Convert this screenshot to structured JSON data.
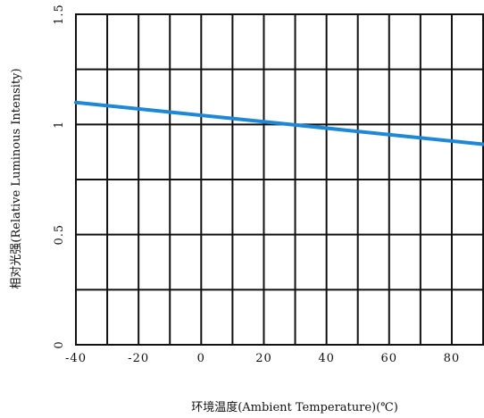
{
  "chart_data": {
    "type": "line",
    "title": "",
    "xlabel": "环境温度(Ambient Temperature)(℃)",
    "ylabel": "相对光强(Relative Luminous Intensity)",
    "xlim": [
      -40,
      90
    ],
    "ylim": [
      0,
      1.5
    ],
    "xticks": [
      -40,
      -20,
      0,
      20,
      40,
      60,
      80
    ],
    "xtick_labels": [
      "-40",
      "-20",
      "0",
      "20",
      "40",
      "60",
      "80"
    ],
    "yticks": [
      0,
      0.5,
      1,
      1.5
    ],
    "ytick_labels": [
      "0",
      "0.5",
      "1",
      "1.5"
    ],
    "x_gridlines": [
      -40,
      -30,
      -20,
      -10,
      0,
      10,
      20,
      30,
      40,
      50,
      60,
      70,
      80,
      90
    ],
    "y_gridlines": [
      0,
      0.25,
      0.5,
      0.75,
      1,
      1.25,
      1.5
    ],
    "grid": true,
    "legend": "none",
    "series": [
      {
        "x": [
          -40,
          90
        ],
        "values": [
          1.1,
          0.91
        ],
        "color": "#1e88d6"
      }
    ]
  }
}
